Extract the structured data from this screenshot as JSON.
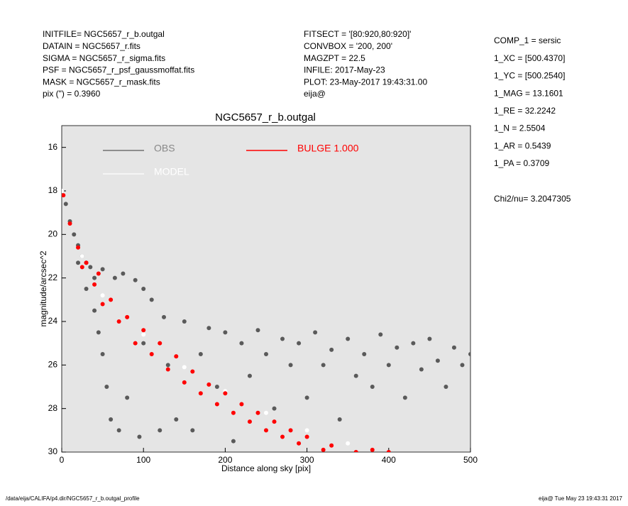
{
  "header": {
    "left": [
      "INITFILE= NGC5657_r_b.outgal",
      "DATAIN  = NGC5657_r.fits",
      "SIGMA  = NGC5657_r_sigma.fits",
      "PSF    = NGC5657_r_psf_gaussmoffat.fits",
      "MASK   = NGC5657_r_mask.fits",
      "pix (\") =  0.3960"
    ],
    "middle": [
      "FITSECT = '[80:920,80:920]'",
      "CONVBOX = '200, 200'",
      "MAGZPT  =             22.5",
      "INFILE: 2017-May-23",
      "PLOT: 23-May-2017 19:43:31.00",
      "eija@"
    ]
  },
  "params": [
    "COMP_1  = sersic",
    "1_XC    = [500.4370]",
    "1_YC    = [500.2540]",
    "1_MAG   = 13.1601",
    "1_RE    = 32.2242",
    "1_N     = 2.5504",
    "1_AR    = 0.5439",
    "1_PA    = 0.3709",
    "Chi2/nu=       3.2047305"
  ],
  "footer": {
    "left": "/data/eija/CALIFA/p4.dir/NGC5657_r_b.outgal_profile",
    "right": "eija@  Tue May 23 19:43:31 2017"
  },
  "chart_data": {
    "type": "scatter",
    "title": "NGC5657_r_b.outgal",
    "x_label": "Distance along sky [pix]",
    "y_label": "magnitude/arcsec^2",
    "xlim": [
      0,
      500
    ],
    "xticks": [
      0,
      100,
      200,
      300,
      400,
      500
    ],
    "ylim": [
      30,
      15
    ],
    "yticks": [
      16,
      18,
      20,
      22,
      24,
      26,
      28,
      30
    ],
    "background": "#e5e5e5",
    "series": [
      {
        "name": "OBS",
        "color": "#5a5a5a",
        "x": [
          5,
          10,
          15,
          20,
          20,
          25,
          30,
          30,
          35,
          40,
          40,
          45,
          50,
          50,
          55,
          60,
          65,
          70,
          75,
          80,
          90,
          95,
          100,
          100,
          110,
          120,
          125,
          130,
          140,
          150,
          160,
          170,
          180,
          190,
          200,
          210,
          220,
          230,
          240,
          250,
          260,
          270,
          280,
          290,
          300,
          310,
          320,
          330,
          340,
          350,
          360,
          370,
          380,
          390,
          400,
          410,
          420,
          430,
          440,
          450,
          460,
          470,
          480,
          490,
          500
        ],
        "values": [
          18.6,
          19.4,
          20.0,
          20.5,
          21.3,
          21.0,
          21.3,
          22.5,
          21.5,
          22.0,
          23.5,
          24.5,
          21.6,
          25.5,
          27.0,
          28.5,
          22.0,
          29.0,
          21.8,
          27.5,
          22.1,
          29.3,
          22.5,
          25.0,
          23.0,
          29.0,
          23.8,
          26.0,
          28.5,
          24.0,
          29.0,
          25.5,
          24.3,
          27.0,
          24.5,
          29.5,
          25.0,
          26.5,
          24.4,
          25.5,
          28.0,
          24.8,
          26.0,
          25.0,
          27.5,
          24.5,
          26.0,
          25.3,
          28.5,
          24.8,
          26.5,
          25.5,
          27.0,
          24.6,
          26.0,
          25.2,
          27.5,
          25.0,
          26.2,
          24.8,
          25.8,
          27.0,
          25.2,
          26.0,
          25.5
        ]
      },
      {
        "name": "MODEL",
        "color": "#ffffff",
        "x": [
          0,
          25,
          50,
          100,
          150,
          200,
          250,
          300,
          350
        ],
        "values": [
          18.0,
          21.0,
          22.8,
          24.6,
          26.1,
          27.2,
          28.2,
          29.0,
          29.6
        ]
      },
      {
        "name": "BULGE  1.000",
        "color": "#ff0000",
        "x": [
          2,
          10,
          20,
          25,
          30,
          40,
          45,
          50,
          60,
          70,
          80,
          90,
          100,
          110,
          120,
          130,
          140,
          150,
          160,
          170,
          180,
          190,
          200,
          210,
          220,
          230,
          240,
          250,
          260,
          270,
          280,
          290,
          300,
          320,
          330,
          360,
          380,
          400
        ],
        "values": [
          18.2,
          19.5,
          20.6,
          21.5,
          21.3,
          22.3,
          21.8,
          23.2,
          23.0,
          24.0,
          23.8,
          25.0,
          24.4,
          25.5,
          25.0,
          26.2,
          25.6,
          26.8,
          26.3,
          27.3,
          26.9,
          27.8,
          27.3,
          28.2,
          27.8,
          28.6,
          28.2,
          29.0,
          28.6,
          29.3,
          29.0,
          29.6,
          29.3,
          29.9,
          29.7,
          30.0,
          29.9,
          30.0
        ]
      }
    ]
  }
}
